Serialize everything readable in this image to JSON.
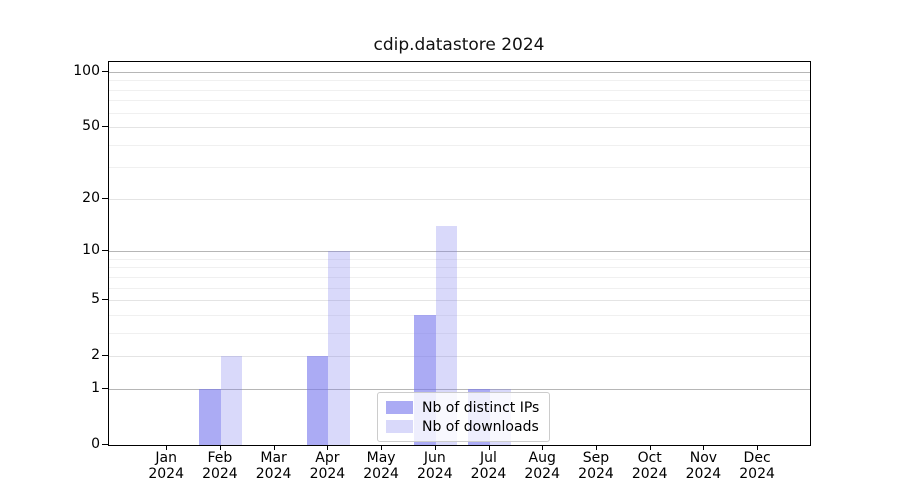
{
  "figure": {
    "title": "cdip.datastore 2024"
  },
  "chart_data": {
    "type": "bar",
    "title": "cdip.datastore 2024",
    "categories": [
      "Jan 2024",
      "Feb 2024",
      "Mar 2024",
      "Apr 2024",
      "May 2024",
      "Jun 2024",
      "Jul 2024",
      "Aug 2024",
      "Sep 2024",
      "Oct 2024",
      "Nov 2024",
      "Dec 2024"
    ],
    "month_labels": [
      "Jan",
      "Feb",
      "Mar",
      "Apr",
      "May",
      "Jun",
      "Jul",
      "Aug",
      "Sep",
      "Oct",
      "Nov",
      "Dec"
    ],
    "year_label": "2024",
    "series": [
      {
        "name": "Nb of distinct IPs",
        "values": [
          0,
          1,
          0,
          2,
          0,
          4,
          1,
          0,
          0,
          0,
          0,
          0
        ],
        "color": "rgba(119,119,238,0.62)"
      },
      {
        "name": "Nb of downloads",
        "values": [
          0,
          2,
          0,
          10,
          0,
          14,
          1,
          0,
          0,
          0,
          0,
          0
        ],
        "color": "rgba(119,119,238,0.28)"
      }
    ],
    "xlabel": "",
    "ylabel": "",
    "yscale": "log1p",
    "ylim": [
      0,
      113
    ],
    "yticks": [
      0,
      1,
      2,
      5,
      10,
      20,
      50,
      100
    ],
    "minor_yticks": [
      3,
      4,
      6,
      7,
      8,
      9,
      30,
      40,
      60,
      70,
      80,
      90
    ],
    "grid": true,
    "legend_position": "lower center"
  },
  "legend": {
    "items": [
      {
        "label": "Nb of distinct IPs"
      },
      {
        "label": "Nb of downloads"
      }
    ]
  },
  "colors": {
    "bar_base": "#7777ee",
    "grid_decade": "#b6b6b6",
    "grid_labeled": "#e4e4e4",
    "grid_minor": "#f0f0f0",
    "spine": "#000000",
    "legend_border": "#cccccc"
  }
}
